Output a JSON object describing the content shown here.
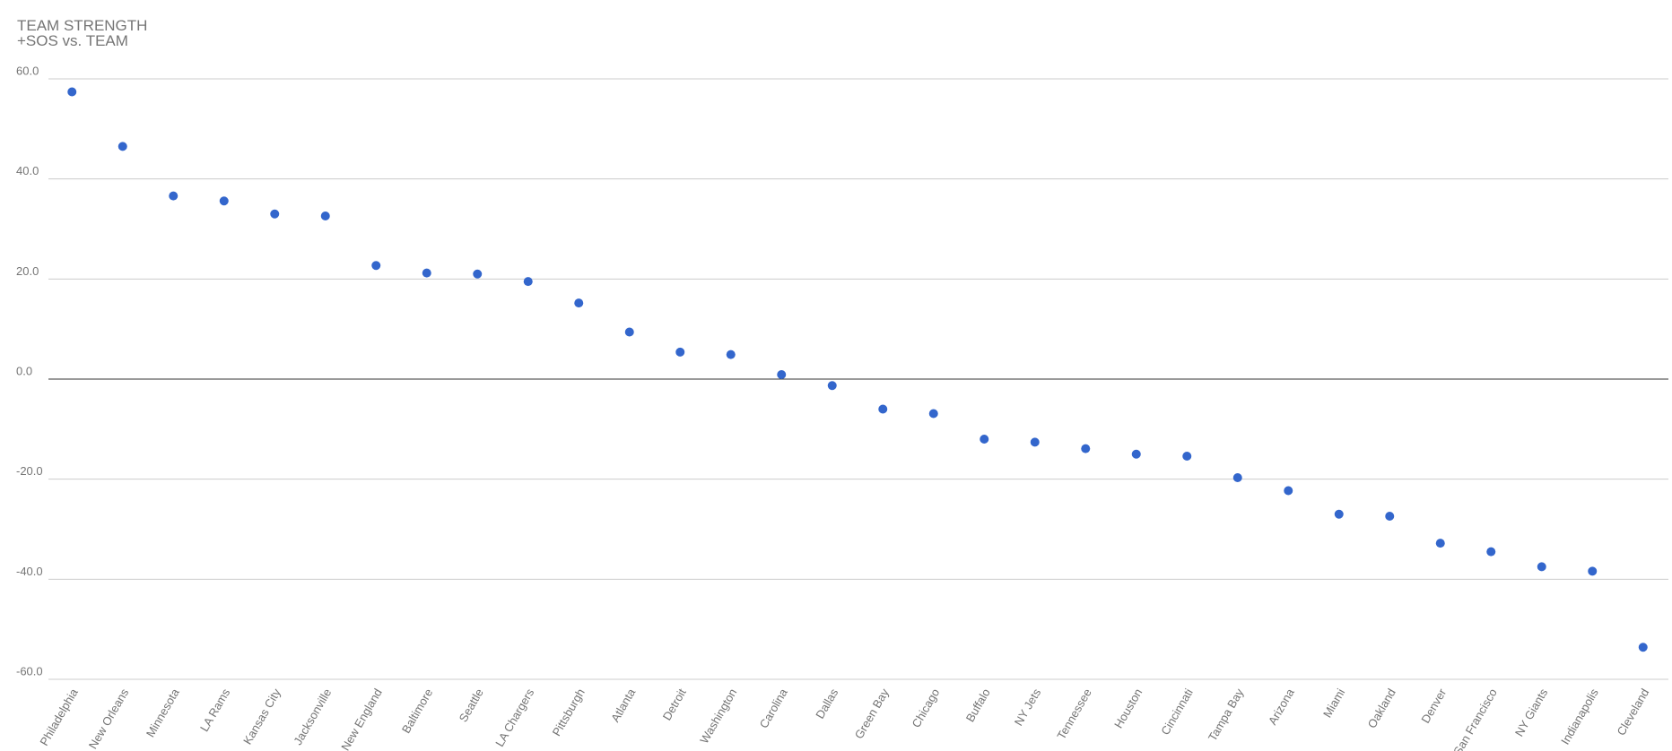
{
  "chart_data": {
    "type": "scatter",
    "title": "TEAM STRENGTH",
    "subtitle": "+SOS vs. TEAM",
    "categories": [
      "Philadelphia",
      "New Orleans",
      "Minnesota",
      "LA Rams",
      "Kansas City",
      "Jacksonville",
      "New England",
      "Baltimore",
      "Seattle",
      "LA Chargers",
      "Pittsburgh",
      "Atlanta",
      "Detroit",
      "Washington",
      "Carolina",
      "Dallas",
      "Green Bay",
      "Chicago",
      "Buffalo",
      "NY Jets",
      "Tennessee",
      "Houston",
      "Cincinnati",
      "Tampa Bay",
      "Arizona",
      "Miami",
      "Oakland",
      "Denver",
      "San Francisco",
      "NY Giants",
      "Indianapolis",
      "Cleveland"
    ],
    "values": [
      57.4,
      46.5,
      36.6,
      35.6,
      33.0,
      32.6,
      22.7,
      21.2,
      21.0,
      19.5,
      15.2,
      9.4,
      5.4,
      4.9,
      0.9,
      -1.3,
      -6.0,
      -6.9,
      -12.0,
      -12.6,
      -13.9,
      -15.0,
      -15.4,
      -19.7,
      -22.3,
      -27.0,
      -27.4,
      -32.8,
      -34.5,
      -37.5,
      -38.4,
      -53.6
    ],
    "color": "#3366cc",
    "ylim": [
      -60,
      60
    ],
    "yticks": [
      {
        "value": -60,
        "label": "-60.0"
      },
      {
        "value": -40,
        "label": "-40.0"
      },
      {
        "value": -20,
        "label": "-20.0"
      },
      {
        "value": 0,
        "label": "0.0"
      },
      {
        "value": 20,
        "label": "20.0"
      },
      {
        "value": 40,
        "label": "40.0"
      },
      {
        "value": 60,
        "label": "60.0"
      }
    ],
    "grid": true
  }
}
